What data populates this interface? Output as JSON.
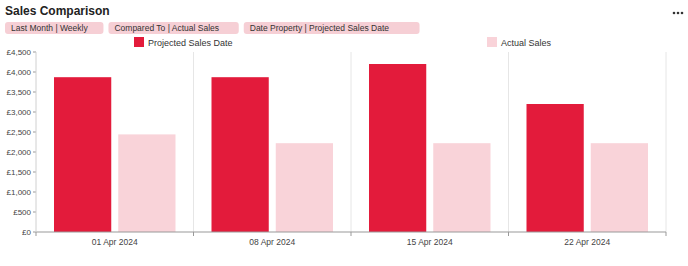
{
  "chart_data": {
    "type": "bar",
    "title": "Sales Comparison",
    "annotations": [
      "Last Month | Weekly",
      "Compared To | Actual Sales",
      "Date Property | Projected Sales Date"
    ],
    "categories": [
      "01 Apr 2024",
      "08 Apr 2024",
      "15 Apr 2024",
      "22 Apr 2024"
    ],
    "series": [
      {
        "name": "Projected Sales Date",
        "color": "#e31b3b",
        "values": [
          3870,
          3870,
          4200,
          3200
        ]
      },
      {
        "name": "Actual Sales",
        "color": "#f9d3d9",
        "values": [
          2440,
          2220,
          2220,
          2220
        ]
      }
    ],
    "ylim": [
      0,
      4500
    ],
    "yticks": [
      {
        "value": 0,
        "label": "£0"
      },
      {
        "value": 500,
        "label": "£500"
      },
      {
        "value": 1000,
        "label": "£1,000"
      },
      {
        "value": 1500,
        "label": "£1,500"
      },
      {
        "value": 2000,
        "label": "£2,000"
      },
      {
        "value": 2500,
        "label": "£2,500"
      },
      {
        "value": 3000,
        "label": "£3,000"
      },
      {
        "value": 3500,
        "label": "£3,500"
      },
      {
        "value": 4000,
        "label": "£4,000"
      },
      {
        "value": 4500,
        "label": "£4,500"
      }
    ],
    "grid": false,
    "legend": "top"
  }
}
